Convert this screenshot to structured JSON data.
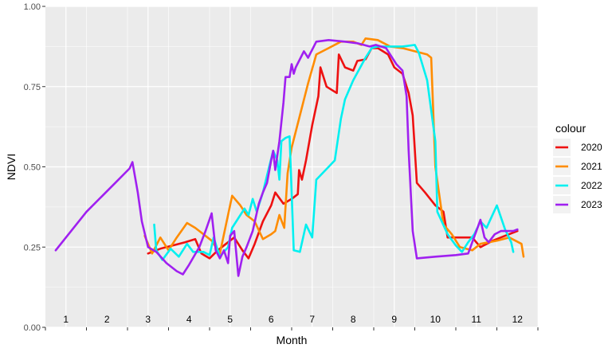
{
  "chart_data": {
    "type": "line",
    "xlabel": "Month",
    "ylabel": "NDVI",
    "xlim": [
      0.5,
      12.5
    ],
    "ylim": [
      0,
      1
    ],
    "month_labels": [
      "1",
      "2",
      "3",
      "4",
      "5",
      "6",
      "7",
      "8",
      "9",
      "10",
      "11",
      "12"
    ],
    "yticks": [
      0,
      0.25,
      0.5,
      0.75,
      1
    ],
    "ytick_labels": [
      "0.00",
      "0.25",
      "0.50",
      "0.75",
      "1.00"
    ],
    "grid": true,
    "legend": {
      "title": "colour",
      "position": "right"
    },
    "series": [
      {
        "name": "2020",
        "color": "#ee1111",
        "points": [
          [
            3.0,
            0.23
          ],
          [
            3.3,
            0.245
          ],
          [
            3.6,
            0.255
          ],
          [
            3.9,
            0.265
          ],
          [
            4.15,
            0.275
          ],
          [
            4.3,
            0.23
          ],
          [
            4.5,
            0.215
          ],
          [
            4.7,
            0.24
          ],
          [
            4.9,
            0.26
          ],
          [
            5.1,
            0.28
          ],
          [
            5.3,
            0.24
          ],
          [
            5.45,
            0.215
          ],
          [
            5.6,
            0.26
          ],
          [
            5.8,
            0.33
          ],
          [
            6.0,
            0.38
          ],
          [
            6.1,
            0.42
          ],
          [
            6.3,
            0.385
          ],
          [
            6.5,
            0.4
          ],
          [
            6.65,
            0.415
          ],
          [
            6.68,
            0.49
          ],
          [
            6.75,
            0.46
          ],
          [
            6.85,
            0.52
          ],
          [
            7.0,
            0.63
          ],
          [
            7.15,
            0.72
          ],
          [
            7.2,
            0.81
          ],
          [
            7.35,
            0.75
          ],
          [
            7.6,
            0.73
          ],
          [
            7.65,
            0.85
          ],
          [
            7.8,
            0.81
          ],
          [
            8.0,
            0.8
          ],
          [
            8.1,
            0.83
          ],
          [
            8.3,
            0.835
          ],
          [
            8.45,
            0.87
          ],
          [
            8.6,
            0.87
          ],
          [
            8.85,
            0.85
          ],
          [
            9.0,
            0.81
          ],
          [
            9.2,
            0.79
          ],
          [
            9.35,
            0.73
          ],
          [
            9.45,
            0.66
          ],
          [
            9.55,
            0.45
          ],
          [
            9.75,
            0.42
          ],
          [
            10.0,
            0.38
          ],
          [
            10.2,
            0.36
          ],
          [
            10.3,
            0.28
          ],
          [
            10.6,
            0.28
          ],
          [
            10.9,
            0.28
          ],
          [
            11.1,
            0.25
          ],
          [
            11.4,
            0.27
          ],
          [
            11.7,
            0.285
          ],
          [
            12.0,
            0.3
          ]
        ]
      },
      {
        "name": "2021",
        "color": "#ff8c00",
        "points": [
          [
            2.92,
            0.285
          ],
          [
            3.1,
            0.23
          ],
          [
            3.3,
            0.28
          ],
          [
            3.5,
            0.24
          ],
          [
            3.7,
            0.28
          ],
          [
            3.95,
            0.325
          ],
          [
            4.15,
            0.31
          ],
          [
            4.35,
            0.29
          ],
          [
            4.55,
            0.27
          ],
          [
            4.75,
            0.23
          ],
          [
            4.9,
            0.32
          ],
          [
            5.05,
            0.41
          ],
          [
            5.25,
            0.38
          ],
          [
            5.4,
            0.35
          ],
          [
            5.6,
            0.33
          ],
          [
            5.8,
            0.275
          ],
          [
            6.0,
            0.29
          ],
          [
            6.1,
            0.3
          ],
          [
            6.2,
            0.35
          ],
          [
            6.32,
            0.31
          ],
          [
            6.4,
            0.48
          ],
          [
            6.5,
            0.56
          ],
          [
            6.7,
            0.66
          ],
          [
            6.9,
            0.76
          ],
          [
            7.1,
            0.85
          ],
          [
            7.4,
            0.87
          ],
          [
            7.7,
            0.89
          ],
          [
            8.0,
            0.89
          ],
          [
            8.2,
            0.88
          ],
          [
            8.3,
            0.9
          ],
          [
            8.6,
            0.895
          ],
          [
            8.9,
            0.875
          ],
          [
            9.2,
            0.87
          ],
          [
            9.5,
            0.86
          ],
          [
            9.8,
            0.85
          ],
          [
            9.9,
            0.84
          ],
          [
            10.0,
            0.5
          ],
          [
            10.2,
            0.32
          ],
          [
            10.4,
            0.29
          ],
          [
            10.6,
            0.25
          ],
          [
            10.9,
            0.24
          ],
          [
            11.1,
            0.26
          ],
          [
            11.5,
            0.27
          ],
          [
            11.8,
            0.28
          ],
          [
            12.1,
            0.26
          ],
          [
            12.15,
            0.22
          ]
        ]
      },
      {
        "name": "2022",
        "color": "#00f0f0",
        "points": [
          [
            3.15,
            0.32
          ],
          [
            3.2,
            0.24
          ],
          [
            3.35,
            0.21
          ],
          [
            3.55,
            0.245
          ],
          [
            3.75,
            0.22
          ],
          [
            3.95,
            0.26
          ],
          [
            4.1,
            0.235
          ],
          [
            4.35,
            0.235
          ],
          [
            4.5,
            0.225
          ],
          [
            4.6,
            0.28
          ],
          [
            4.75,
            0.22
          ],
          [
            4.95,
            0.25
          ],
          [
            5.05,
            0.31
          ],
          [
            5.15,
            0.33
          ],
          [
            5.35,
            0.37
          ],
          [
            5.45,
            0.35
          ],
          [
            5.55,
            0.4
          ],
          [
            5.65,
            0.36
          ],
          [
            5.8,
            0.42
          ],
          [
            5.95,
            0.5
          ],
          [
            6.05,
            0.55
          ],
          [
            6.15,
            0.52
          ],
          [
            6.2,
            0.46
          ],
          [
            6.25,
            0.58
          ],
          [
            6.35,
            0.59
          ],
          [
            6.45,
            0.595
          ],
          [
            6.55,
            0.24
          ],
          [
            6.7,
            0.235
          ],
          [
            6.85,
            0.32
          ],
          [
            7.0,
            0.28
          ],
          [
            7.1,
            0.46
          ],
          [
            7.4,
            0.5
          ],
          [
            7.55,
            0.52
          ],
          [
            7.7,
            0.65
          ],
          [
            7.8,
            0.71
          ],
          [
            8.0,
            0.77
          ],
          [
            8.3,
            0.84
          ],
          [
            8.45,
            0.87
          ],
          [
            8.6,
            0.875
          ],
          [
            8.9,
            0.875
          ],
          [
            9.2,
            0.875
          ],
          [
            9.5,
            0.88
          ],
          [
            9.6,
            0.855
          ],
          [
            9.8,
            0.77
          ],
          [
            10.0,
            0.58
          ],
          [
            10.05,
            0.36
          ],
          [
            10.3,
            0.29
          ],
          [
            10.5,
            0.255
          ],
          [
            10.65,
            0.235
          ],
          [
            10.8,
            0.265
          ],
          [
            10.95,
            0.29
          ],
          [
            11.1,
            0.33
          ],
          [
            11.25,
            0.31
          ],
          [
            11.5,
            0.38
          ],
          [
            11.7,
            0.305
          ],
          [
            11.85,
            0.265
          ],
          [
            11.9,
            0.235
          ]
        ]
      },
      {
        "name": "2023",
        "color": "#a020f0",
        "points": [
          [
            0.75,
            0.24
          ],
          [
            1.5,
            0.36
          ],
          [
            2.2,
            0.45
          ],
          [
            2.55,
            0.495
          ],
          [
            2.62,
            0.515
          ],
          [
            2.75,
            0.42
          ],
          [
            2.85,
            0.33
          ],
          [
            3.0,
            0.25
          ],
          [
            3.2,
            0.235
          ],
          [
            3.45,
            0.2
          ],
          [
            3.7,
            0.175
          ],
          [
            3.85,
            0.165
          ],
          [
            4.0,
            0.195
          ],
          [
            4.25,
            0.25
          ],
          [
            4.4,
            0.3
          ],
          [
            4.55,
            0.355
          ],
          [
            4.65,
            0.24
          ],
          [
            4.75,
            0.215
          ],
          [
            4.85,
            0.24
          ],
          [
            4.95,
            0.2
          ],
          [
            5.0,
            0.285
          ],
          [
            5.1,
            0.3
          ],
          [
            5.2,
            0.16
          ],
          [
            5.3,
            0.22
          ],
          [
            5.4,
            0.25
          ],
          [
            5.55,
            0.3
          ],
          [
            5.7,
            0.385
          ],
          [
            5.8,
            0.42
          ],
          [
            5.9,
            0.45
          ],
          [
            6.0,
            0.52
          ],
          [
            6.05,
            0.55
          ],
          [
            6.1,
            0.49
          ],
          [
            6.2,
            0.58
          ],
          [
            6.3,
            0.7
          ],
          [
            6.35,
            0.78
          ],
          [
            6.45,
            0.78
          ],
          [
            6.5,
            0.82
          ],
          [
            6.55,
            0.79
          ],
          [
            6.6,
            0.81
          ],
          [
            6.8,
            0.86
          ],
          [
            6.9,
            0.84
          ],
          [
            7.1,
            0.89
          ],
          [
            7.4,
            0.895
          ],
          [
            7.8,
            0.89
          ],
          [
            8.1,
            0.885
          ],
          [
            8.4,
            0.875
          ],
          [
            8.55,
            0.88
          ],
          [
            8.8,
            0.87
          ],
          [
            9.05,
            0.82
          ],
          [
            9.2,
            0.8
          ],
          [
            9.3,
            0.72
          ],
          [
            9.35,
            0.55
          ],
          [
            9.45,
            0.3
          ],
          [
            9.55,
            0.215
          ],
          [
            10.0,
            0.22
          ],
          [
            10.5,
            0.225
          ],
          [
            10.8,
            0.23
          ],
          [
            10.9,
            0.265
          ],
          [
            11.0,
            0.3
          ],
          [
            11.1,
            0.335
          ],
          [
            11.2,
            0.28
          ],
          [
            11.3,
            0.265
          ],
          [
            11.45,
            0.29
          ],
          [
            11.6,
            0.3
          ],
          [
            11.9,
            0.3
          ],
          [
            12.0,
            0.305
          ]
        ]
      }
    ]
  }
}
